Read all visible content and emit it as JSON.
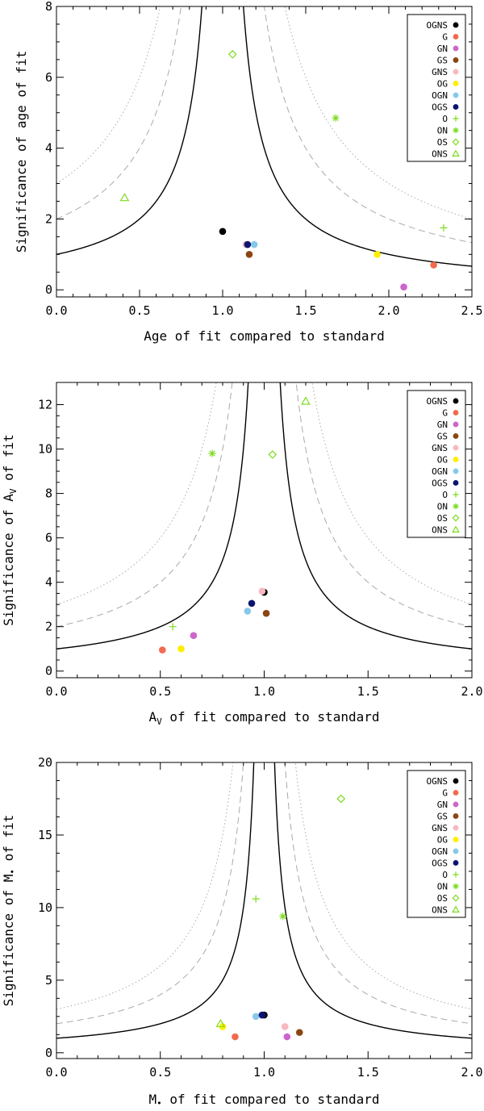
{
  "legend": {
    "entries": [
      {
        "label": "OGNS",
        "color": "#000000",
        "marker": "dot"
      },
      {
        "label": "G",
        "color": "#f26b4f",
        "marker": "dot"
      },
      {
        "label": "GN",
        "color": "#cc66cc",
        "marker": "dot"
      },
      {
        "label": "GS",
        "color": "#8b4513",
        "marker": "dot"
      },
      {
        "label": "GNS",
        "color": "#f7b8bf",
        "marker": "dot"
      },
      {
        "label": "OG",
        "color": "#ffee00",
        "marker": "dot"
      },
      {
        "label": "OGN",
        "color": "#87c8ea",
        "marker": "dot"
      },
      {
        "label": "OGS",
        "color": "#0d1470",
        "marker": "dot"
      },
      {
        "label": "O",
        "color": "#7ddc1f",
        "marker": "plus"
      },
      {
        "label": "ON",
        "color": "#7ddc1f",
        "marker": "asterisk"
      },
      {
        "label": "OS",
        "color": "#7ddc1f",
        "marker": "diamond"
      },
      {
        "label": "ONS",
        "color": "#7ddc1f",
        "marker": "triangle"
      }
    ]
  },
  "chart_data": [
    {
      "type": "scatter",
      "xlabel": "Age of fit compared to standard",
      "ylabel": "Significance of age of fit",
      "xlim": [
        0,
        2.5
      ],
      "ylim": [
        -0.2,
        8
      ],
      "xticks": [
        "0.0",
        "0.5",
        "1.0",
        "1.5",
        "2.0",
        "2.5"
      ],
      "yticks": [
        "0",
        "2",
        "4",
        "6",
        "8"
      ],
      "curves": [
        "solid (1-sigma)",
        "dashed (2-sigma)",
        "dotted (3-sigma)"
      ],
      "legend_position": "top-right",
      "points": [
        {
          "name": "OGNS",
          "x": 1.0,
          "y": 1.65
        },
        {
          "name": "G",
          "x": 2.27,
          "y": 0.7
        },
        {
          "name": "GN",
          "x": 2.09,
          "y": 0.08
        },
        {
          "name": "GS",
          "x": 1.16,
          "y": 1.0
        },
        {
          "name": "GNS",
          "x": 1.14,
          "y": 1.28
        },
        {
          "name": "OG",
          "x": 1.93,
          "y": 1.0
        },
        {
          "name": "OGN",
          "x": 1.19,
          "y": 1.28
        },
        {
          "name": "OGS",
          "x": 1.15,
          "y": 1.28
        },
        {
          "name": "O",
          "x": 2.33,
          "y": 1.75
        },
        {
          "name": "ON",
          "x": 1.68,
          "y": 4.85
        },
        {
          "name": "OS",
          "x": 1.06,
          "y": 6.65
        },
        {
          "name": "ONS",
          "x": 0.41,
          "y": 2.6
        }
      ]
    },
    {
      "type": "scatter",
      "xlabel": "A",
      "xlabel_sub": "V",
      "xlabel_rest": " of fit compared to standard",
      "ylabel": "Significance of A",
      "ylabel_sub": "V",
      "ylabel_rest": " of fit",
      "xlim": [
        0,
        2
      ],
      "ylim": [
        -0.3,
        13
      ],
      "xticks": [
        "0.0",
        "0.5",
        "1.0",
        "1.5",
        "2.0"
      ],
      "yticks": [
        "0",
        "2",
        "4",
        "6",
        "8",
        "10",
        "12"
      ],
      "curves": [
        "solid (1-sigma)",
        "dashed (2-sigma)",
        "dotted (3-sigma)"
      ],
      "legend_position": "top-right",
      "points": [
        {
          "name": "OGNS",
          "x": 1.0,
          "y": 3.55
        },
        {
          "name": "G",
          "x": 0.51,
          "y": 0.95
        },
        {
          "name": "GN",
          "x": 0.66,
          "y": 1.6
        },
        {
          "name": "GS",
          "x": 1.01,
          "y": 2.6
        },
        {
          "name": "GNS",
          "x": 0.99,
          "y": 3.6
        },
        {
          "name": "OG",
          "x": 0.6,
          "y": 1.0
        },
        {
          "name": "OGN",
          "x": 0.92,
          "y": 2.7
        },
        {
          "name": "OGS",
          "x": 0.94,
          "y": 3.05
        },
        {
          "name": "O",
          "x": 0.56,
          "y": 2.0
        },
        {
          "name": "ON",
          "x": 0.75,
          "y": 9.8
        },
        {
          "name": "OS",
          "x": 1.04,
          "y": 9.75
        },
        {
          "name": "ONS",
          "x": 1.2,
          "y": 12.15
        }
      ]
    },
    {
      "type": "scatter",
      "xlabel": "M",
      "xlabel_sub": "*",
      "xlabel_rest": " of fit compared to standard",
      "ylabel": "Significance of M",
      "ylabel_sub": "*",
      "ylabel_rest": " of fit",
      "xlim": [
        0,
        2
      ],
      "ylim": [
        -0.4,
        20
      ],
      "xticks": [
        "0.0",
        "0.5",
        "1.0",
        "1.5",
        "2.0"
      ],
      "yticks": [
        "0",
        "5",
        "10",
        "15",
        "20"
      ],
      "curves": [
        "solid (1-sigma)",
        "dashed (2-sigma)",
        "dotted (3-sigma)"
      ],
      "legend_position": "top-right",
      "points": [
        {
          "name": "OGNS",
          "x": 1.0,
          "y": 2.6
        },
        {
          "name": "G",
          "x": 0.86,
          "y": 1.1
        },
        {
          "name": "GN",
          "x": 1.11,
          "y": 1.1
        },
        {
          "name": "GS",
          "x": 1.17,
          "y": 1.4
        },
        {
          "name": "GNS",
          "x": 1.1,
          "y": 1.8
        },
        {
          "name": "OG",
          "x": 0.8,
          "y": 1.8
        },
        {
          "name": "OGN",
          "x": 0.96,
          "y": 2.5
        },
        {
          "name": "OGS",
          "x": 0.99,
          "y": 2.6
        },
        {
          "name": "O",
          "x": 0.96,
          "y": 10.6
        },
        {
          "name": "ON",
          "x": 1.09,
          "y": 9.4
        },
        {
          "name": "OS",
          "x": 1.37,
          "y": 17.5
        },
        {
          "name": "ONS",
          "x": 0.79,
          "y": 2.0
        }
      ]
    }
  ]
}
